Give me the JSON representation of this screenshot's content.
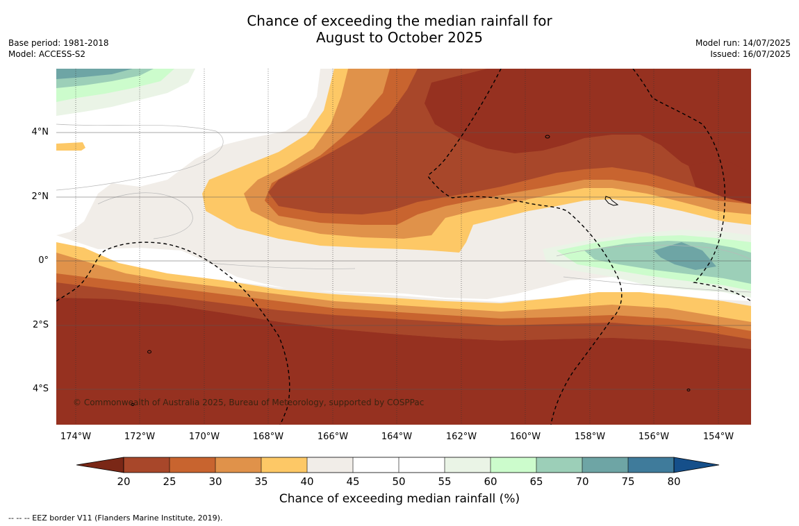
{
  "title": {
    "line1": "Chance of exceeding the median rainfall for",
    "line2": "August to October 2025"
  },
  "meta_left": {
    "base_period": "Base period: 1981-2018",
    "model": "Model: ACCESS-S2"
  },
  "meta_right": {
    "model_run": "Model run: 14/07/2025",
    "issued": "Issued: 16/07/2025"
  },
  "map": {
    "longitude_labels": [
      "174°W",
      "172°W",
      "170°W",
      "168°W",
      "166°W",
      "164°W",
      "162°W",
      "160°W",
      "158°W",
      "156°W",
      "154°W"
    ],
    "latitude_labels": [
      "4°N",
      "2°N",
      "0°",
      "2°S",
      "4°S"
    ],
    "copyright": "© Commonwealth of Australia 2025, Bureau of Meteorology, supported by COSPPac"
  },
  "colorbar": {
    "title": "Chance of exceeding median rainfall (%)",
    "tick_labels": [
      "20",
      "25",
      "30",
      "35",
      "40",
      "45",
      "50",
      "55",
      "60",
      "65",
      "70",
      "75",
      "80"
    ],
    "under_color": "#7a2716",
    "over_color": "#154f8a",
    "bin_colors": [
      "#a8472a",
      "#c8642f",
      "#e0924a",
      "#fdc866",
      "#f1ede8",
      "#ffffff",
      "#ffffff",
      "#eaf4e6",
      "#ccfccc",
      "#9ccfb8",
      "#6ea5a5",
      "#3f7b9b"
    ]
  },
  "map_colors": {
    "deep_brown": "#963120",
    "brown": "#a8472a",
    "orange_brown": "#c8642f",
    "orange": "#e0924a",
    "yellow": "#fdc866",
    "beige": "#f1ede8",
    "pale_green": "#eaf4e6",
    "light_green": "#ccfccc",
    "sea_green": "#9ccfb8",
    "teal": "#6ea5a5",
    "steel_blue": "#3f7b9b"
  },
  "footnote": "--  --  -- EEZ border V11 (Flanders Marine Institute, 2019)."
}
